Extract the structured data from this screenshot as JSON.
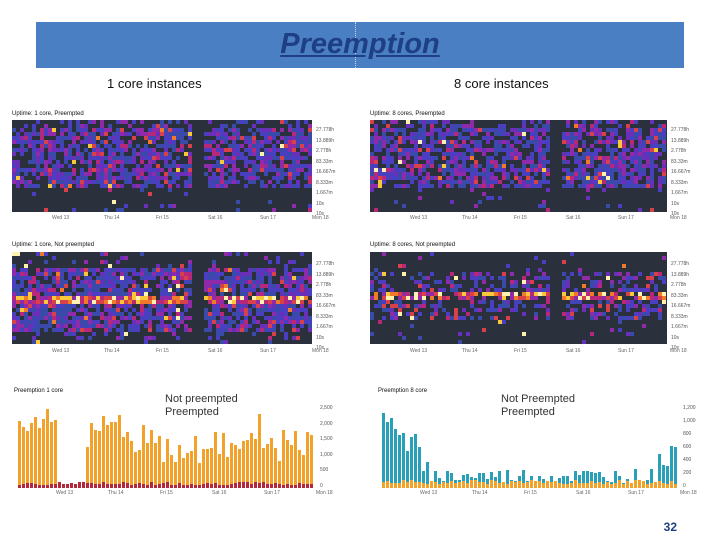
{
  "slide": {
    "title": "Preemption",
    "page_number": "32"
  },
  "columns": {
    "left": "1 core instances",
    "right": "8 core instances"
  },
  "heatmaps": {
    "y_ticks": [
      "27.778h",
      "13.889h",
      "2.778h",
      "83.33m",
      "16.667m",
      "8.333m",
      "1.667m",
      "10s",
      "10s"
    ],
    "x_ticks": [
      "Wed 13",
      "Thu 14",
      "Fri 15",
      "Sat 16",
      "Sun 17",
      "Mon 18"
    ],
    "titles": {
      "c1_pre": "Uptime: 1 core, Preempted",
      "c8_pre": "Uptime: 8 cores, Preempted",
      "c1_not": "Uptime: 1 core, Not preempted",
      "c8_not": "Uptime: 8 cores, Not preempted"
    }
  },
  "bar_charts": {
    "c1": {
      "title": "Preemption 1 core",
      "legend_a": "Not preempted",
      "legend_b": "Preempted",
      "y_ticks": [
        "2,500",
        "2,000",
        "1,500",
        "1,000",
        "500",
        "0"
      ]
    },
    "c8": {
      "title": "Preemption 8 core",
      "legend_a": "Not Preempted",
      "legend_b": "Preempted",
      "y_ticks": [
        "1,200",
        "1,000",
        "800",
        "600",
        "400",
        "200",
        "0"
      ]
    },
    "x_ticks": [
      "Wed 13",
      "Thu 14",
      "Fri 15",
      "Sat 16",
      "Sun 17",
      "Mon 18"
    ]
  },
  "colors": {
    "title_bg": "#4a7fc4",
    "title_text": "#1f3f84",
    "heat_bg": "#2a313c",
    "bar_orange": "#f2a22b",
    "bar_red": "#b3283c",
    "bar_teal": "#2aa0b8"
  }
}
